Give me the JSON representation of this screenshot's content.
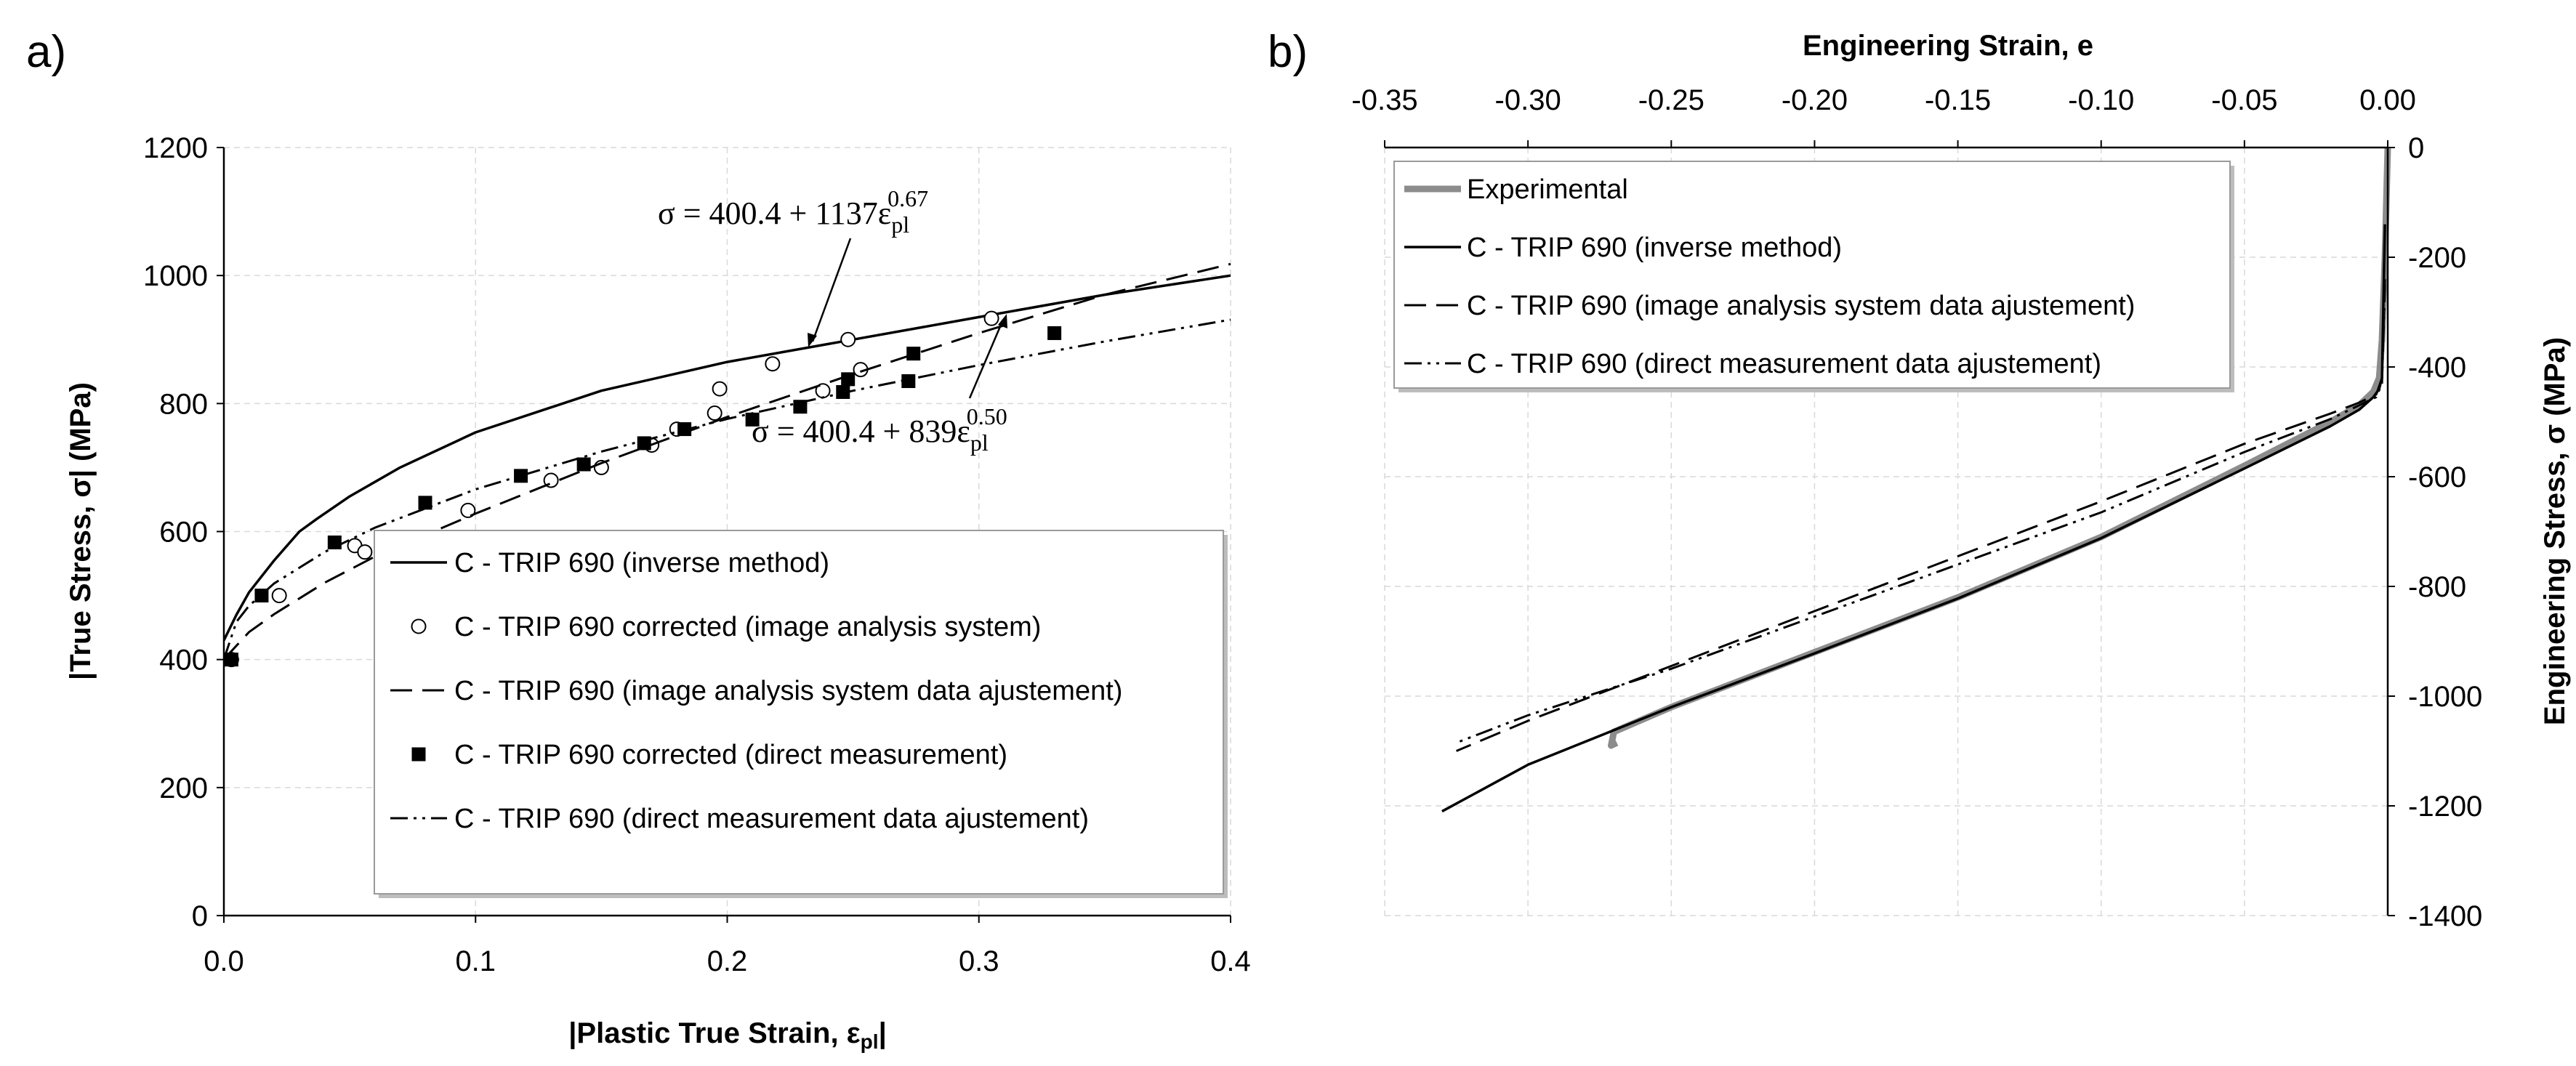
{
  "chart_data": [
    {
      "panel_label": "a)",
      "type": "line",
      "xlabel": "|Plastic True Strain, ε",
      "xlabel_sub": "pl",
      "xlabel_end": "|",
      "ylabel": "|True Stress, σ| (MPa)",
      "xlim": [
        0,
        0.4
      ],
      "ylim": [
        0,
        1200
      ],
      "xticks": [
        "0.0",
        "0.1",
        "0.2",
        "0.3",
        "0.4"
      ],
      "yticks": [
        "0",
        "200",
        "400",
        "600",
        "800",
        "1000",
        "1200"
      ],
      "grid": true,
      "legend_position": "bottom-right",
      "series": [
        {
          "name": "C - TRIP 690 (inverse method)",
          "style": "solid",
          "x": [
            0,
            0.005,
            0.01,
            0.02,
            0.03,
            0.037,
            0.05,
            0.07,
            0.1,
            0.15,
            0.2,
            0.25,
            0.3,
            0.35,
            0.4
          ],
          "y": [
            430,
            470,
            505,
            555,
            600,
            620,
            655,
            700,
            755,
            820,
            865,
            900,
            935,
            970,
            1000
          ]
        },
        {
          "name": "C - TRIP 690 corrected (image analysis system)",
          "style": "open-circle",
          "x": [
            0.003,
            0.022,
            0.052,
            0.056,
            0.097,
            0.13,
            0.15,
            0.17,
            0.18,
            0.195,
            0.197,
            0.218,
            0.238,
            0.248,
            0.253,
            0.305
          ],
          "y": [
            400,
            500,
            578,
            568,
            633,
            680,
            700,
            735,
            760,
            785,
            823,
            862,
            820,
            900,
            853,
            933
          ]
        },
        {
          "name": "C - TRIP 690 (image analysis system data ajustement)",
          "style": "dashed",
          "x": [
            0,
            0.01,
            0.02,
            0.04,
            0.06,
            0.1,
            0.15,
            0.2,
            0.25,
            0.3,
            0.35,
            0.4
          ],
          "y": [
            400.4,
            443,
            471,
            520,
            561,
            628,
            707,
            779,
            846,
            910,
            970,
            1018
          ]
        },
        {
          "name": "C - TRIP 690 corrected (direct measurement)",
          "style": "filled-square",
          "x": [
            0.003,
            0.015,
            0.044,
            0.08,
            0.118,
            0.143,
            0.167,
            0.183,
            0.21,
            0.229,
            0.246,
            0.248,
            0.272,
            0.274,
            0.33
          ],
          "y": [
            400,
            500,
            583,
            645,
            687,
            705,
            738,
            760,
            775,
            795,
            818,
            838,
            835,
            878,
            910
          ]
        },
        {
          "name": "C - TRIP 690 (direct measurement  data ajustement)",
          "style": "dash-dot-dot",
          "x": [
            0,
            0.005,
            0.01,
            0.02,
            0.04,
            0.06,
            0.1,
            0.15,
            0.2,
            0.25,
            0.3,
            0.35,
            0.4
          ],
          "y": [
            400.4,
            459,
            484,
            519,
            568,
            606,
            666,
            725,
            776,
            820,
            860,
            897,
            931
          ]
        }
      ],
      "annotations": [
        {
          "prefix": "σ = 400.4 + 1137",
          "base": "ε",
          "sub": "pl",
          "sup": "0.67"
        },
        {
          "prefix": "σ = 400.4 + 839",
          "base": "ε",
          "sub": "pl",
          "sup": "0.50"
        }
      ]
    },
    {
      "panel_label": "b)",
      "type": "line",
      "xlabel": "Engineering Strain, e",
      "ylabel": "Engineering Stress, σ (MPa)",
      "xlim": [
        -0.35,
        0.0
      ],
      "ylim": [
        -1400,
        0
      ],
      "xticks": [
        "-0.35",
        "-0.30",
        "-0.25",
        "-0.20",
        "-0.15",
        "-0.10",
        "-0.05",
        "0.00"
      ],
      "yticks": [
        "0",
        "-200",
        "-400",
        "-600",
        "-800",
        "-1000",
        "-1200",
        "-1400"
      ],
      "grid": true,
      "legend_position": "top-left",
      "series": [
        {
          "name": "Experimental",
          "style": "thick-gray",
          "x": [
            0,
            -0.001,
            -0.002,
            -0.003,
            -0.005,
            -0.01,
            -0.02,
            -0.05,
            -0.1,
            -0.15,
            -0.2,
            -0.25,
            -0.27,
            -0.271,
            -0.269
          ],
          "y": [
            0,
            -200,
            -350,
            -420,
            -445,
            -470,
            -500,
            -580,
            -710,
            -820,
            -920,
            -1020,
            -1065,
            -1090,
            -1085
          ]
        },
        {
          "name": "C - TRIP 690 (inverse method)",
          "style": "solid",
          "x": [
            -0.001,
            -0.002,
            -0.003,
            -0.005,
            -0.01,
            -0.02,
            -0.05,
            -0.1,
            -0.15,
            -0.2,
            -0.25,
            -0.3,
            -0.33
          ],
          "y": [
            -140,
            -420,
            -440,
            -455,
            -478,
            -508,
            -585,
            -712,
            -822,
            -922,
            -1020,
            -1125,
            -1210
          ]
        },
        {
          "name": "C - TRIP 690 (image analysis system data ajustement)",
          "style": "dashed",
          "x": [
            -0.001,
            -0.002,
            -0.004,
            -0.01,
            -0.02,
            -0.05,
            -0.1,
            -0.15,
            -0.2,
            -0.25,
            -0.3,
            -0.325
          ],
          "y": [
            -240,
            -420,
            -450,
            -465,
            -485,
            -540,
            -645,
            -745,
            -845,
            -945,
            -1045,
            -1100
          ]
        },
        {
          "name": "C - TRIP 690 (direct measurement  data ajustement)",
          "style": "dash-dot-dot",
          "x": [
            -0.001,
            -0.002,
            -0.004,
            -0.01,
            -0.02,
            -0.05,
            -0.1,
            -0.15,
            -0.2,
            -0.25,
            -0.3,
            -0.325
          ],
          "y": [
            -250,
            -430,
            -455,
            -470,
            -495,
            -555,
            -665,
            -760,
            -855,
            -950,
            -1035,
            -1085
          ]
        }
      ]
    }
  ]
}
